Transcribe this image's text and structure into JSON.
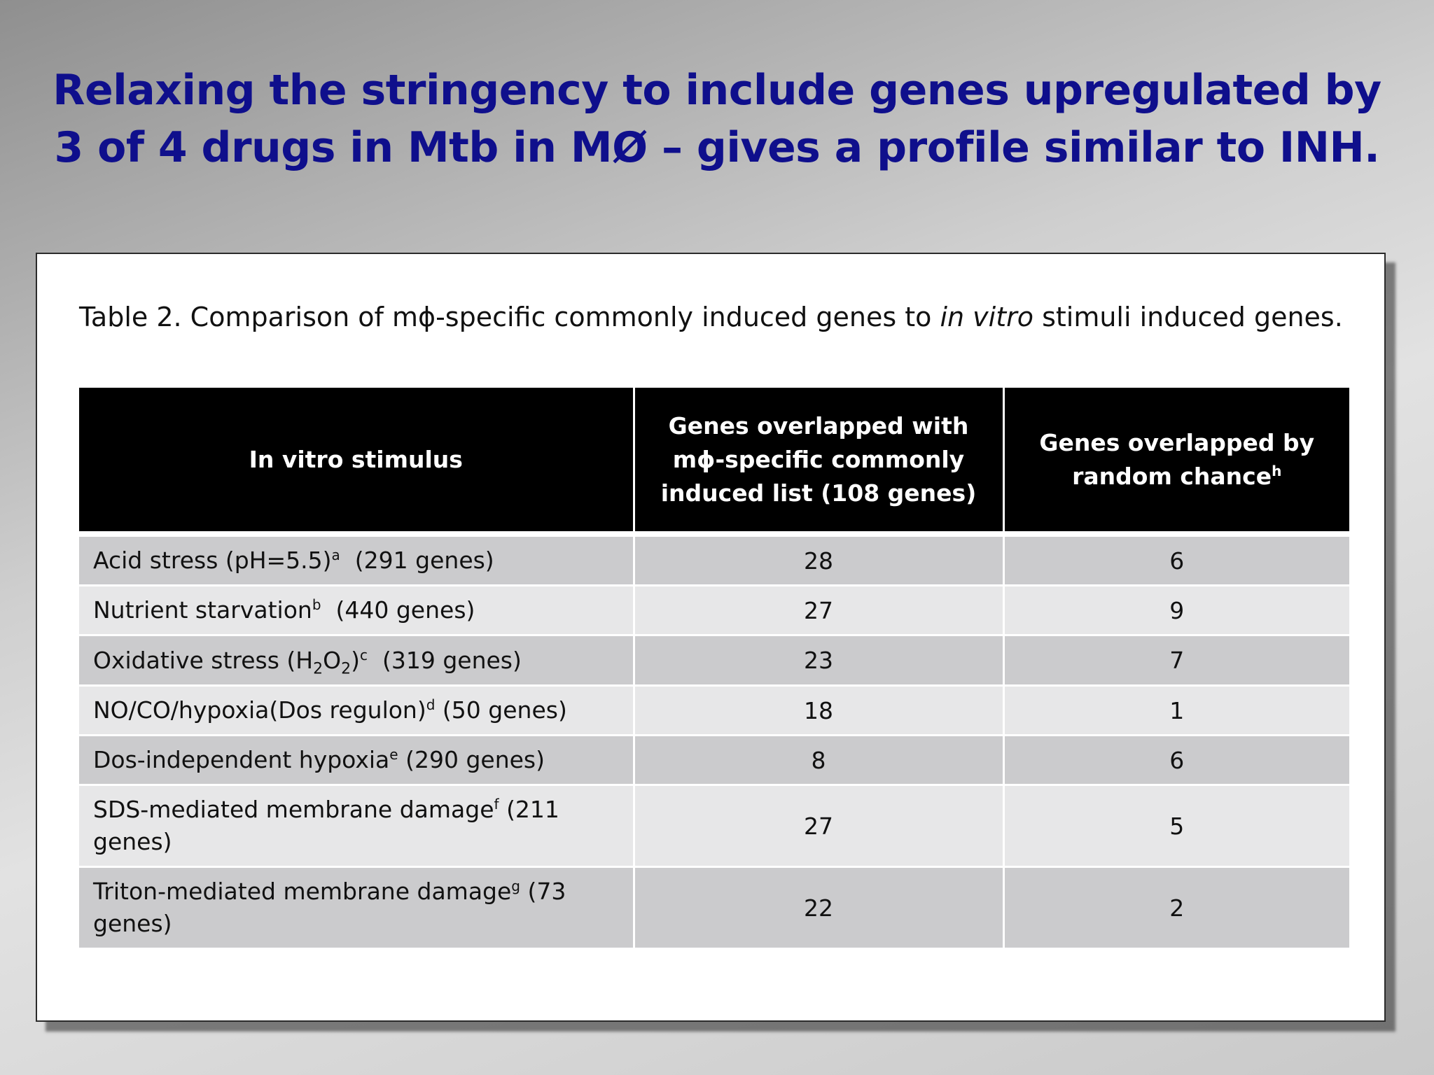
{
  "title": {
    "line1": "Relaxing the stringency to include genes upregulated by",
    "line2": "3 of 4 drugs in Mtb in MØ – gives a profile similar to INH."
  },
  "table_caption": {
    "prefix": "Table 2. Comparison of mϕ-specific commonly induced genes to ",
    "italic": "in vitro",
    "suffix": " stimuli induced genes."
  },
  "table": {
    "headers": {
      "col1": "In vitro stimulus",
      "col2": "Genes overlapped with mϕ-specific commonly induced list (108 genes)",
      "col3": "Genes overlapped by random chance",
      "col3_sup": "h"
    },
    "rows": [
      {
        "stimulus": "Acid stress (pH=5.5)",
        "sup": "a",
        "genes": "(291 genes)",
        "overlap": "28",
        "random": "6"
      },
      {
        "stimulus": "Nutrient starvation",
        "sup": "b",
        "genes": "(440 genes)",
        "overlap": "27",
        "random": "9"
      },
      {
        "stimulus_a": "Oxidative stress (H",
        "sub1": "2",
        "stimulus_b": "O",
        "sub2": "2",
        "stimulus_c": ")",
        "sup": "c",
        "genes": "(319 genes)",
        "overlap": "23",
        "random": "7"
      },
      {
        "stimulus": "NO/CO/hypoxia(Dos regulon)",
        "sup": "d",
        "genes": "(50 genes)",
        "overlap": "18",
        "random": "1"
      },
      {
        "stimulus": "Dos-independent hypoxia",
        "sup": "e",
        "genes": "(290 genes)",
        "overlap": "8",
        "random": "6"
      },
      {
        "stimulus": "SDS-mediated membrane damage",
        "sup": "f",
        "genes": "(211 genes)",
        "overlap": "27",
        "random": "5"
      },
      {
        "stimulus": "Triton-mediated membrane damage",
        "sup": "g",
        "genes": "(73 genes)",
        "overlap": "22",
        "random": "2"
      }
    ]
  }
}
